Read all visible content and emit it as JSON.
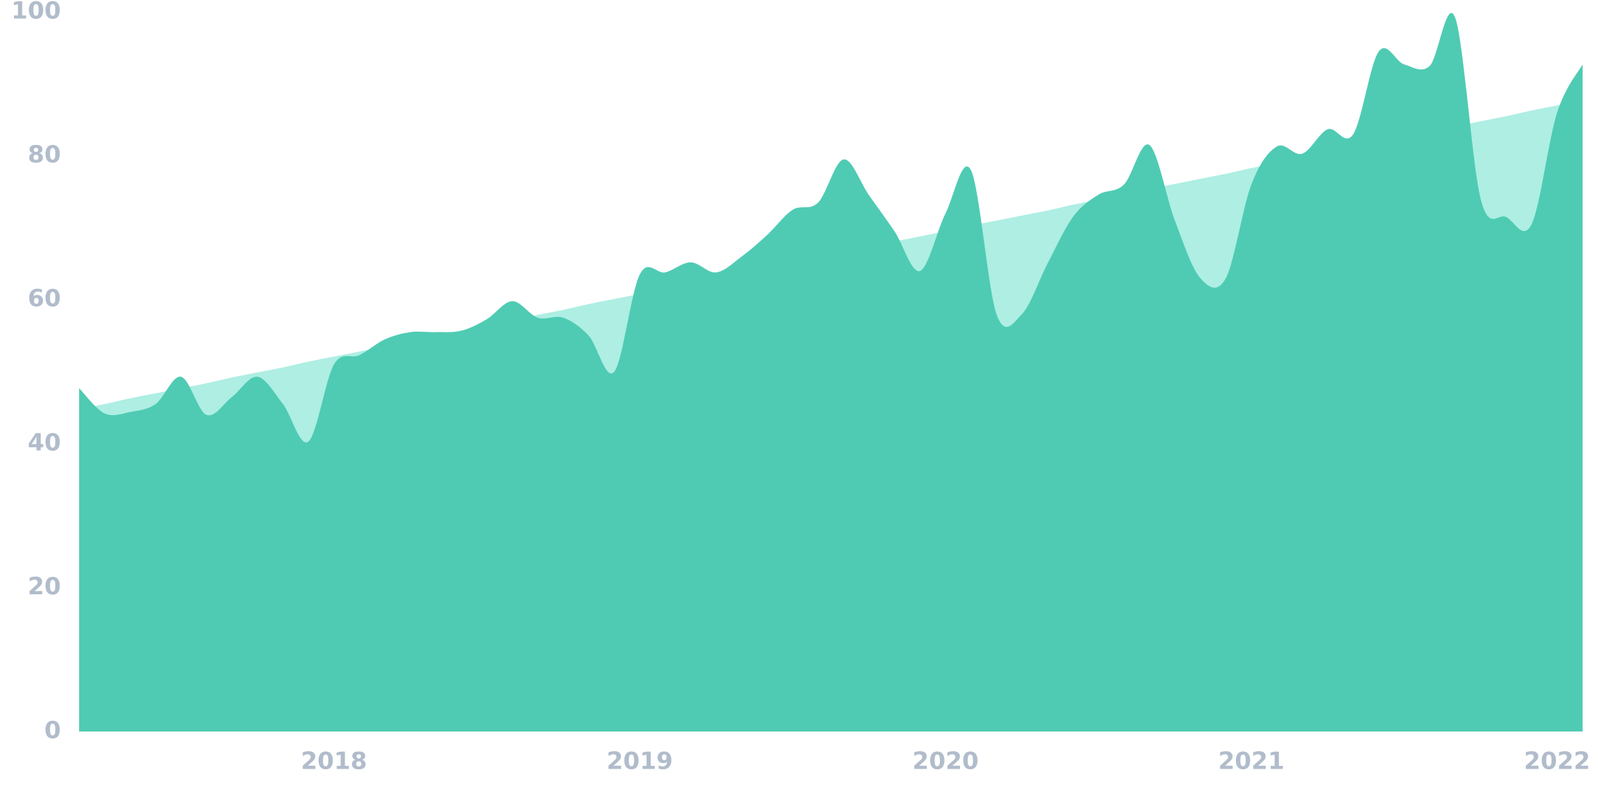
{
  "chart_data": {
    "type": "area",
    "categories": [
      null,
      null,
      null,
      null,
      null,
      null,
      null,
      null,
      null,
      null,
      "2018",
      null,
      null,
      null,
      null,
      null,
      null,
      null,
      null,
      null,
      null,
      null,
      "2019",
      null,
      null,
      null,
      null,
      null,
      null,
      null,
      null,
      null,
      null,
      null,
      "2020",
      null,
      null,
      null,
      null,
      null,
      null,
      null,
      null,
      null,
      null,
      null,
      "2021",
      null,
      null,
      null,
      null,
      null,
      null,
      null,
      null,
      null,
      null,
      null,
      "2022",
      null
    ],
    "series": [
      {
        "color": "#aeeee3",
        "values": [
          44.8,
          45.5,
          46.3,
          47.0,
          47.7,
          48.4,
          49.2,
          49.9,
          50.6,
          51.4,
          52.1,
          52.8,
          53.5,
          54.3,
          55.0,
          55.7,
          56.4,
          57.2,
          57.9,
          58.6,
          59.4,
          60.1,
          60.8,
          61.5,
          62.3,
          63.0,
          63.7,
          64.4,
          65.2,
          65.9,
          66.6,
          67.4,
          68.1,
          68.8,
          69.5,
          70.3,
          71.0,
          71.7,
          72.4,
          73.2,
          73.9,
          74.6,
          75.4,
          76.1,
          76.8,
          77.5,
          78.3,
          79.0,
          79.7,
          80.4,
          81.2,
          81.9,
          82.6,
          83.4,
          84.1,
          84.8,
          85.5,
          86.3,
          87.0,
          87.7
        ]
      },
      {
        "color": "#4fcbb3",
        "values": [
          47.7,
          44.2,
          44.4,
          45.5,
          49.3,
          44.0,
          46.5,
          49.3,
          45.5,
          40.3,
          51.0,
          52.3,
          54.5,
          55.5,
          55.5,
          55.7,
          57.3,
          59.8,
          57.5,
          57.5,
          55.0,
          50.0,
          63.5,
          63.8,
          65.2,
          63.8,
          66.0,
          69.0,
          72.5,
          73.5,
          79.5,
          74.5,
          69.5,
          64.0,
          72.0,
          78.0,
          58.0,
          58.0,
          65.0,
          71.5,
          74.6,
          76.0,
          81.5,
          71.0,
          63.0,
          63.0,
          76.0,
          81.3,
          80.3,
          83.7,
          83.0,
          94.5,
          92.7,
          92.5,
          99.2,
          74.0,
          71.5,
          70.5,
          86.0,
          92.7
        ]
      }
    ],
    "ylim": [
      0,
      100
    ],
    "yticks": [
      0,
      20,
      40,
      60,
      80,
      100
    ],
    "grid": false
  }
}
